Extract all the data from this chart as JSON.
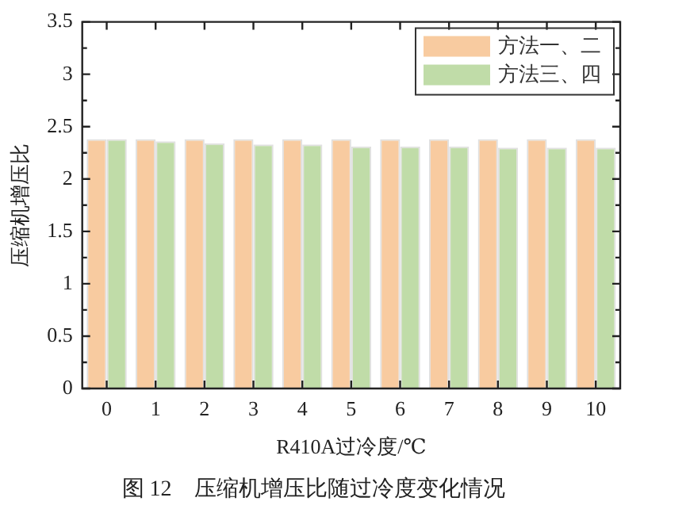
{
  "chart_data": {
    "type": "bar",
    "title": "图 12　压缩机增压比随过冷度变化情况",
    "xlabel": "R410A过冷度/℃",
    "ylabel": "压缩机增压比",
    "categories": [
      "0",
      "1",
      "2",
      "3",
      "4",
      "5",
      "6",
      "7",
      "8",
      "9",
      "10"
    ],
    "series": [
      {
        "name": "方法一、二",
        "color": "#f8cba0",
        "values": [
          2.38,
          2.38,
          2.38,
          2.38,
          2.38,
          2.38,
          2.38,
          2.38,
          2.38,
          2.38,
          2.38
        ]
      },
      {
        "name": "方法三、四",
        "color": "#c0dca8",
        "values": [
          2.38,
          2.36,
          2.34,
          2.33,
          2.33,
          2.31,
          2.31,
          2.31,
          2.3,
          2.3,
          2.3
        ]
      }
    ],
    "ylim": [
      0,
      3.5
    ],
    "yticks": [
      0,
      0.5,
      1,
      1.5,
      2,
      2.5,
      3,
      3.5
    ],
    "grid": false,
    "legend": "top right"
  }
}
